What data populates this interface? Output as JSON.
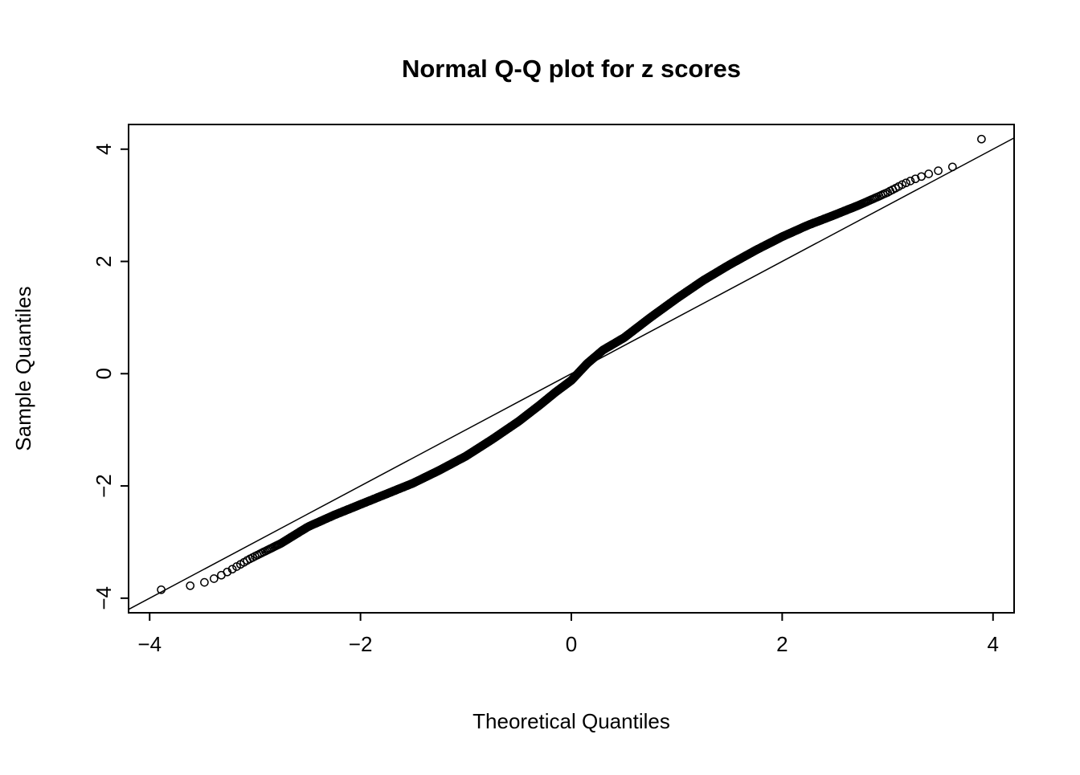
{
  "figure": {
    "title": "Normal Q-Q plot for z scores",
    "xlabel": "Theoretical Quantiles",
    "ylabel": "Sample Quantiles"
  },
  "chart_data": {
    "type": "scatter",
    "title": "Normal Q-Q plot for z scores",
    "xlabel": "Theoretical Quantiles",
    "ylabel": "Sample Quantiles",
    "xlim": [
      -4.2,
      4.2
    ],
    "ylim": [
      -4.26,
      4.44
    ],
    "x_ticks": [
      -4,
      -2,
      0,
      2,
      4
    ],
    "y_ticks": [
      -4,
      -2,
      0,
      2,
      4
    ],
    "grid": false,
    "legend": false,
    "marker": "open-circle",
    "colors": {
      "points": "#000000",
      "line": "#000000",
      "axis": "#000000",
      "background": "#ffffff"
    },
    "reference_line": {
      "type": "identity",
      "from": [
        -4.2,
        -4.2
      ],
      "to": [
        4.2,
        4.2
      ]
    },
    "n_points": 10000,
    "curve_control_points": [
      [
        -3.89,
        -3.85
      ],
      [
        -3.72,
        -3.81
      ],
      [
        -3.62,
        -3.78
      ],
      [
        -3.54,
        -3.75
      ],
      [
        -3.45,
        -3.7
      ],
      [
        -3.35,
        -3.62
      ],
      [
        -3.25,
        -3.52
      ],
      [
        -3.15,
        -3.41
      ],
      [
        -3.05,
        -3.3
      ],
      [
        -2.9,
        -3.16
      ],
      [
        -2.75,
        -3.02
      ],
      [
        -2.5,
        -2.73
      ],
      [
        -2.25,
        -2.52
      ],
      [
        -2.0,
        -2.33
      ],
      [
        -1.75,
        -2.14
      ],
      [
        -1.5,
        -1.95
      ],
      [
        -1.25,
        -1.72
      ],
      [
        -1.0,
        -1.47
      ],
      [
        -0.75,
        -1.17
      ],
      [
        -0.5,
        -0.85
      ],
      [
        -0.3,
        -0.56
      ],
      [
        -0.15,
        -0.33
      ],
      [
        0.0,
        -0.12
      ],
      [
        0.15,
        0.18
      ],
      [
        0.3,
        0.42
      ],
      [
        0.5,
        0.64
      ],
      [
        0.75,
        1.0
      ],
      [
        1.0,
        1.34
      ],
      [
        1.25,
        1.66
      ],
      [
        1.5,
        1.94
      ],
      [
        1.75,
        2.2
      ],
      [
        2.0,
        2.44
      ],
      [
        2.25,
        2.65
      ],
      [
        2.5,
        2.83
      ],
      [
        2.75,
        3.02
      ],
      [
        3.0,
        3.23
      ],
      [
        3.15,
        3.38
      ],
      [
        3.3,
        3.5
      ],
      [
        3.45,
        3.6
      ],
      [
        3.6,
        3.68
      ],
      [
        3.72,
        3.72
      ],
      [
        3.89,
        4.18
      ]
    ],
    "notable_points": {
      "min": [
        -3.89,
        -3.85
      ],
      "max": [
        3.89,
        4.18
      ]
    }
  }
}
